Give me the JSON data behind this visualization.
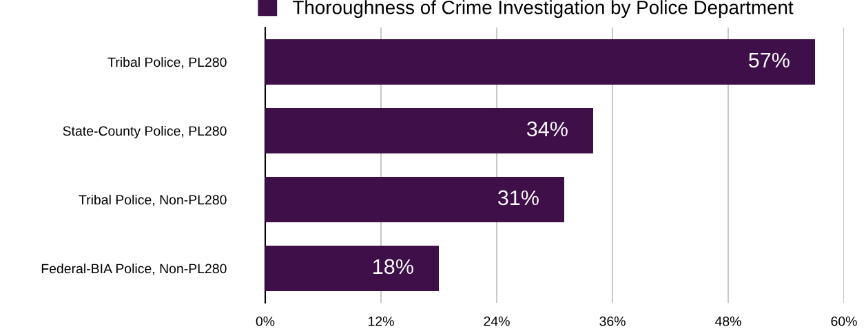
{
  "chart_data": {
    "type": "bar",
    "orientation": "horizontal",
    "categories": [
      "Tribal Police, PL280",
      "State-County Police, PL280",
      "Tribal Police, Non-PL280",
      "Federal-BIA Police, Non-PL280"
    ],
    "series": [
      {
        "name": "Thoroughness of Crime Investigation by Police Department",
        "color": "#3f0f4a",
        "values": [
          57,
          34,
          31,
          18
        ],
        "value_labels": [
          "57%",
          "34%",
          "31%",
          "18%"
        ]
      }
    ],
    "xlim": [
      0,
      60
    ],
    "xticks": [
      {
        "value": 0,
        "label": "0%"
      },
      {
        "value": 12,
        "label": "12%"
      },
      {
        "value": 24,
        "label": "24%"
      },
      {
        "value": 36,
        "label": "36%"
      },
      {
        "value": 48,
        "label": "48%"
      },
      {
        "value": 60,
        "label": "60%"
      }
    ],
    "grid": "x",
    "legend": "top"
  }
}
